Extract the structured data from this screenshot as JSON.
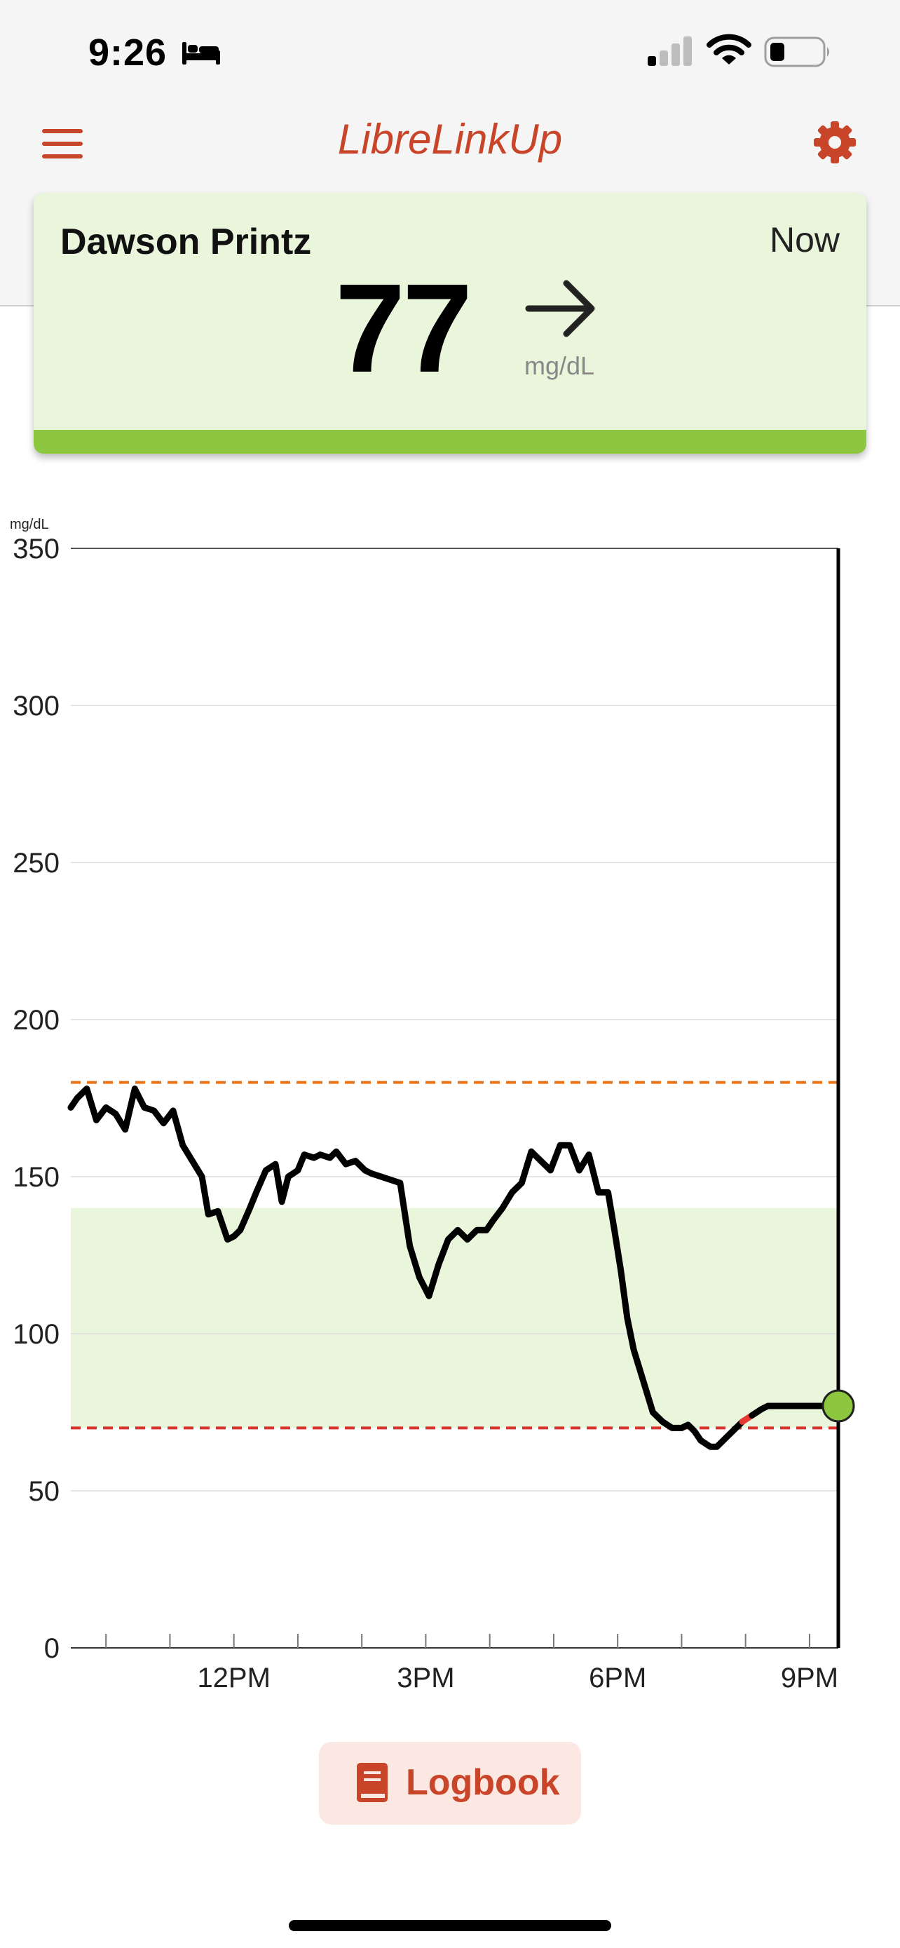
{
  "status_bar": {
    "time": "9:26"
  },
  "app": {
    "title": "LibreLinkUp"
  },
  "patient": {
    "name": "Dawson Printz",
    "reading_time": "Now",
    "glucose": "77",
    "unit": "mg/dL",
    "trend": "right-arrow-icon"
  },
  "logbook": {
    "label": "Logbook"
  },
  "colors": {
    "accent": "#c9452a",
    "in_range": "#8dc63f",
    "target_band": "#e9f6dc",
    "high_line": "#e8741a",
    "low_line": "#d9312b",
    "low_trace": "#e53935"
  },
  "chart_data": {
    "type": "line",
    "ylabel": "mg/dL",
    "ylim": [
      0,
      350
    ],
    "y_ticks": [
      0,
      50,
      100,
      150,
      200,
      250,
      300,
      350
    ],
    "x_tick_labels": [
      {
        "label": "12PM",
        "hour": 12
      },
      {
        "label": "3PM",
        "hour": 15
      },
      {
        "label": "6PM",
        "hour": 18
      },
      {
        "label": "9PM",
        "hour": 21
      }
    ],
    "xlim_hours": [
      9.45,
      21.45
    ],
    "target_range": [
      70,
      140
    ],
    "high_threshold": 180,
    "low_threshold": 70,
    "current": {
      "hour": 21.45,
      "value": 77
    },
    "series": [
      {
        "x": [
          9.45,
          9.55,
          9.7,
          9.85,
          10.0,
          10.15,
          10.3,
          10.45,
          10.6,
          10.75,
          10.9,
          11.05,
          11.2,
          11.35,
          11.5,
          11.6,
          11.75,
          11.9,
          12.0,
          12.1,
          12.25,
          12.35,
          12.5,
          12.65,
          12.75,
          12.85,
          13.0,
          13.1,
          13.25,
          13.35,
          13.5,
          13.6,
          13.75,
          13.9,
          14.05,
          14.15,
          14.3,
          14.45,
          14.6,
          14.75,
          14.9,
          15.05,
          15.2,
          15.35,
          15.5,
          15.65,
          15.8,
          15.95,
          16.05,
          16.2,
          16.35,
          16.5,
          16.65,
          16.8,
          16.95,
          17.1,
          17.25,
          17.4,
          17.55,
          17.7,
          17.85,
          17.95,
          18.05,
          18.15,
          18.25,
          18.4,
          18.55,
          18.7,
          18.85,
          19.0,
          19.1,
          19.2,
          19.3,
          19.45,
          19.55,
          19.7,
          19.85,
          19.95,
          20.1,
          20.25,
          20.35
        ],
        "y": [
          172,
          175,
          178,
          168,
          172,
          170,
          165,
          178,
          172,
          171,
          167,
          171,
          160,
          155,
          150,
          138,
          139,
          130,
          131,
          133,
          140,
          145,
          152,
          154,
          142,
          150,
          152,
          157,
          156,
          157,
          156,
          158,
          154,
          155,
          152,
          151,
          150,
          149,
          148,
          128,
          118,
          112,
          122,
          130,
          133,
          130,
          133,
          133,
          136,
          140,
          145,
          148,
          158,
          155,
          152,
          160,
          160,
          152,
          157,
          145,
          145,
          133,
          120,
          105,
          95,
          85,
          75,
          72,
          70,
          70,
          71,
          69,
          66,
          64,
          64,
          67,
          70,
          72,
          74,
          76,
          77
        ],
        "low_segment_from_hour": 19.95
      }
    ]
  }
}
